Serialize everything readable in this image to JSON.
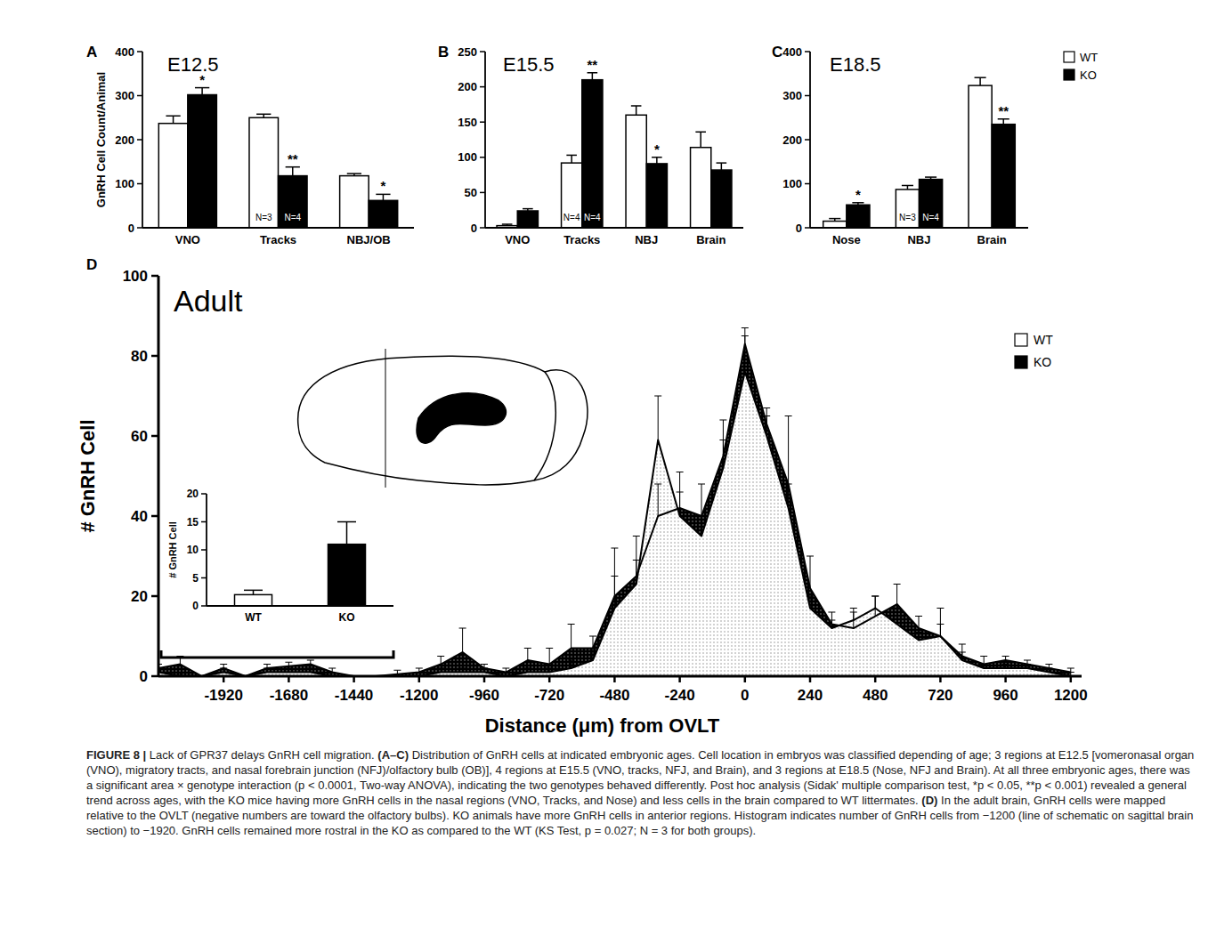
{
  "chart_data": [
    {
      "type": "bar",
      "panel": "A",
      "title": "E12.5",
      "y_label": "GnRH Cell Count/Animal",
      "categories": [
        "VNO",
        "Tracks",
        "NBJ/OB"
      ],
      "series": [
        {
          "name": "WT",
          "color": "#ffffff",
          "values": [
            237,
            250,
            118
          ],
          "errors": [
            17,
            8,
            5
          ],
          "n_labels": [
            null,
            "N=3",
            null
          ]
        },
        {
          "name": "KO",
          "color": "#000000",
          "values": [
            302,
            118,
            62
          ],
          "errors": [
            16,
            20,
            14
          ],
          "n_labels": [
            null,
            "N=4",
            null
          ],
          "significance": [
            "*",
            "**",
            "*"
          ]
        }
      ],
      "ylim": [
        0,
        400
      ],
      "yticks": [
        0,
        100,
        200,
        300,
        400
      ]
    },
    {
      "type": "bar",
      "panel": "B",
      "title": "E15.5",
      "categories": [
        "VNO",
        "Tracks",
        "NBJ",
        "Brain"
      ],
      "series": [
        {
          "name": "WT",
          "color": "#ffffff",
          "values": [
            3,
            92,
            160,
            114
          ],
          "errors": [
            2,
            11,
            13,
            22
          ],
          "n_labels": [
            null,
            "N=4",
            null,
            null
          ]
        },
        {
          "name": "KO",
          "color": "#000000",
          "values": [
            24,
            210,
            91,
            82
          ],
          "errors": [
            3,
            10,
            9,
            10
          ],
          "n_labels": [
            null,
            "N=4",
            null,
            null
          ],
          "significance": [
            null,
            "**",
            "*",
            null
          ]
        }
      ],
      "ylim": [
        0,
        250
      ],
      "yticks": [
        0,
        50,
        100,
        150,
        200,
        250
      ]
    },
    {
      "type": "bar",
      "panel": "C",
      "title": "E18.5",
      "legend": "right",
      "categories": [
        "Nose",
        "NBJ",
        "Brain"
      ],
      "series": [
        {
          "name": "WT",
          "color": "#ffffff",
          "values": [
            15,
            87,
            323
          ],
          "errors": [
            6,
            9,
            18
          ],
          "n_labels": [
            null,
            "N=3",
            null
          ]
        },
        {
          "name": "KO",
          "color": "#000000",
          "values": [
            52,
            110,
            235
          ],
          "errors": [
            5,
            5,
            12
          ],
          "n_labels": [
            null,
            "N=4",
            null
          ],
          "significance": [
            "*",
            null,
            "**"
          ]
        }
      ],
      "ylim": [
        0,
        400
      ],
      "yticks": [
        0,
        100,
        200,
        300,
        400
      ]
    },
    {
      "type": "area",
      "panel": "D",
      "title": "Adult",
      "x_label": "Distance (μm) from OVLT",
      "y_label": "# GnRH Cell",
      "legend": "upper right",
      "x": [
        -2160,
        -2080,
        -2000,
        -1920,
        -1840,
        -1760,
        -1680,
        -1600,
        -1520,
        -1440,
        -1360,
        -1280,
        -1200,
        -1120,
        -1040,
        -960,
        -880,
        -800,
        -720,
        -640,
        -560,
        -480,
        -400,
        -320,
        -240,
        -160,
        -80,
        0,
        80,
        160,
        240,
        320,
        400,
        480,
        560,
        640,
        720,
        800,
        880,
        960,
        1040,
        1120,
        1200
      ],
      "series": [
        {
          "name": "WT",
          "color": "#ffffff",
          "values": [
            1,
            0,
            0,
            1,
            0,
            1,
            1,
            1,
            0,
            0,
            0,
            0,
            0,
            1,
            1,
            1,
            0,
            1,
            1,
            2,
            4,
            17,
            23,
            59,
            40,
            35,
            52,
            76,
            60,
            42,
            17,
            12,
            14,
            17,
            13,
            9,
            10,
            4,
            2,
            2,
            2,
            1,
            0
          ],
          "errors": [
            1,
            1,
            0,
            1,
            0,
            1,
            1,
            1,
            0,
            0,
            0,
            0,
            0,
            1,
            1,
            1,
            0,
            1,
            1,
            2,
            3,
            8,
            6,
            11,
            6,
            5,
            7,
            9,
            5,
            6,
            3,
            2,
            3,
            3,
            3,
            2,
            3,
            2,
            1,
            1,
            1,
            1,
            1
          ]
        },
        {
          "name": "KO",
          "color": "#000000",
          "values": [
            2,
            3,
            0,
            2,
            0,
            2,
            2.5,
            3,
            1,
            0,
            0,
            0.5,
            1,
            3,
            6,
            2,
            1,
            4,
            3,
            7,
            7,
            20,
            25,
            40,
            42,
            40,
            55,
            83,
            63,
            48,
            22,
            13,
            12,
            15,
            18,
            12,
            10,
            5,
            3,
            4,
            3,
            2,
            1
          ],
          "errors": [
            1,
            2,
            0,
            1,
            0,
            1,
            1,
            1,
            1,
            0,
            0,
            1,
            1,
            2,
            6,
            1,
            1,
            3,
            4,
            6,
            3,
            12,
            10,
            8,
            9,
            8,
            9,
            4,
            4,
            17,
            8,
            3,
            4,
            5,
            5,
            3,
            7,
            3,
            2,
            1,
            1,
            1,
            1
          ]
        }
      ],
      "xlim": [
        -2160,
        1240
      ],
      "xticks": [
        -1920,
        -1680,
        -1440,
        -1200,
        -960,
        -720,
        -480,
        -240,
        0,
        240,
        480,
        720,
        960,
        1200
      ],
      "ylim": [
        0,
        100
      ],
      "yticks": [
        0,
        20,
        40,
        60,
        80,
        100
      ]
    },
    {
      "type": "bar",
      "y_label": "# GnRH Cell",
      "categories": [
        "WT",
        "KO"
      ],
      "values": [
        2,
        11
      ],
      "errors": [
        0.8,
        4
      ],
      "colors": [
        "#ffffff",
        "#000000"
      ],
      "ylim": [
        0,
        20
      ],
      "yticks": [
        0,
        5,
        10,
        15,
        20
      ]
    }
  ],
  "caption": {
    "label": "FIGURE 8 |",
    "title": "Lack of GPR37 delays GnRH cell migration.",
    "sections": [
      {
        "label": "(A–C)",
        "text": "Distribution of GnRH cells at indicated embryonic ages. Cell location in embryos was classified depending of age; 3 regions at E12.5 [vomeronasal organ (VNO), migratory tracts, and nasal forebrain junction (NFJ)/olfactory bulb (OB)], 4 regions at E15.5 (VNO, tracks, NFJ, and Brain), and 3 regions at E18.5 (Nose, NFJ and Brain). At all three embryonic ages, there was a significant area × genotype interaction (p < 0.0001, Two-way ANOVA), indicating the two genotypes behaved differently. Post hoc analysis (Sidak' multiple comparison test, *p < 0.05, **p < 0.001) revealed a general trend across ages, with the KO mice having more GnRH cells in the nasal regions (VNO, Tracks, and Nose) and less cells in the brain compared to WT littermates."
      },
      {
        "label": "(D)",
        "text": "In the adult brain, GnRH cells were mapped relative to the OVLT (negative numbers are toward the olfactory bulbs). KO animals have more GnRH cells in anterior regions. Histogram indicates number of GnRH cells from −1200 (line of schematic on sagittal brain section) to −1920. GnRH cells remained more rostral in the KO as compared to the WT (KS Test, p = 0.027; N = 3 for both groups)."
      }
    ]
  }
}
